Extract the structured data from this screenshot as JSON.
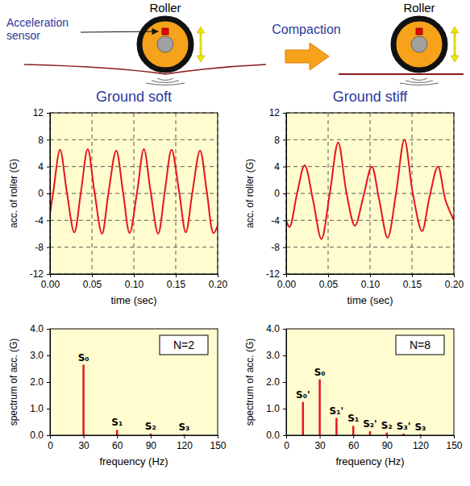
{
  "diagram": {
    "rollers": [
      {
        "label": "Roller"
      },
      {
        "label": "Roller"
      }
    ],
    "sensor_label": "Acceleration sensor",
    "arrow_label": "Compaction"
  },
  "chart_data": [
    {
      "type": "line",
      "title": "Ground soft",
      "xlabel": "time (sec)",
      "ylabel": "acc. of roller (G)",
      "x": [
        0,
        0.004,
        0.012,
        0.02,
        0.029,
        0.037,
        0.045,
        0.053,
        0.062,
        0.07,
        0.079,
        0.087,
        0.095,
        0.104,
        0.112,
        0.12,
        0.129,
        0.137,
        0.145,
        0.154,
        0.162,
        0.17,
        0.179,
        0.187,
        0.195,
        0.2
      ],
      "values": [
        -3,
        0.3,
        6.5,
        0.3,
        -5.8,
        0.3,
        6.6,
        0.3,
        -6,
        0.3,
        6.4,
        0.3,
        -5.9,
        0.3,
        6.6,
        0.3,
        -6,
        0.3,
        6.5,
        0.3,
        -5.8,
        0.3,
        6.4,
        0.3,
        -5.9,
        -4.8
      ],
      "color": "#e8141c",
      "xlim": [
        0,
        0.2
      ],
      "ylim": [
        -12,
        12
      ],
      "xticks": [
        {
          "value": 0,
          "label": "0.00"
        },
        {
          "value": 0.05,
          "label": "0.05"
        },
        {
          "value": 0.1,
          "label": "0.10"
        },
        {
          "value": 0.15,
          "label": "0.15"
        },
        {
          "value": 0.2,
          "label": "0.20"
        }
      ],
      "yticks": [
        -12,
        -8,
        -4,
        0,
        4,
        8,
        12
      ],
      "grid": true
    },
    {
      "type": "line",
      "title": "Ground stiff",
      "xlabel": "time (sec)",
      "ylabel": "acc. of roller (G)",
      "x": [
        0,
        0.004,
        0.013,
        0.022,
        0.032,
        0.042,
        0.052,
        0.062,
        0.072,
        0.082,
        0.092,
        0.102,
        0.111,
        0.121,
        0.131,
        0.141,
        0.151,
        0.162,
        0.171,
        0.181,
        0.19,
        0.2
      ],
      "values": [
        -4,
        -5,
        0,
        4.2,
        -1,
        -6.8,
        0,
        7.6,
        0,
        -4.8,
        -0.5,
        4,
        -1,
        -6.6,
        0,
        8,
        0,
        -5.6,
        -0.5,
        4,
        -1,
        -4
      ],
      "color": "#e8141c",
      "xlim": [
        0,
        0.2
      ],
      "ylim": [
        -12,
        12
      ],
      "xticks": [
        {
          "value": 0,
          "label": "0.00"
        },
        {
          "value": 0.05,
          "label": "0.05"
        },
        {
          "value": 0.1,
          "label": "0.10"
        },
        {
          "value": 0.15,
          "label": "0.15"
        },
        {
          "value": 0.2,
          "label": "0.20"
        }
      ],
      "yticks": [
        -12,
        -8,
        -4,
        0,
        4,
        8,
        12
      ],
      "grid": true
    },
    {
      "type": "stem",
      "xlabel": "frequency (Hz)",
      "ylabel": "spectrum of acc. (G)",
      "x": [
        30,
        60,
        90,
        120
      ],
      "values": [
        2.65,
        0.2,
        0.06,
        0.04
      ],
      "point_labels": [
        "S₀",
        "S₁",
        "S₂",
        "S₃"
      ],
      "annotations": [
        "N=2"
      ],
      "color": "#e8141c",
      "xlim": [
        0,
        150
      ],
      "ylim": [
        0,
        4
      ],
      "xticks": [
        0,
        30,
        60,
        90,
        120,
        150
      ],
      "yticks": [
        {
          "value": 0,
          "label": "0.0"
        },
        {
          "value": 1,
          "label": "1.0"
        },
        {
          "value": 2,
          "label": "2.0"
        },
        {
          "value": 3,
          "label": "3.0"
        },
        {
          "value": 4,
          "label": "4.0"
        }
      ],
      "grid": false
    },
    {
      "type": "stem",
      "xlabel": "frequency (Hz)",
      "ylabel": "spectrum of acc. (G)",
      "x": [
        15,
        30,
        45,
        60,
        75,
        90,
        105,
        120
      ],
      "values": [
        1.25,
        2.1,
        0.65,
        0.35,
        0.15,
        0.1,
        0.06,
        0.04
      ],
      "point_labels": [
        "S₀'",
        "S₀",
        "S₁'",
        "S₁",
        "S₂'",
        "S₂",
        "S₃'",
        "S₃"
      ],
      "annotations": [
        "N=8"
      ],
      "color": "#e8141c",
      "xlim": [
        0,
        150
      ],
      "ylim": [
        0,
        4
      ],
      "xticks": [
        0,
        30,
        60,
        90,
        120,
        150
      ],
      "yticks": [
        {
          "value": 0,
          "label": "0.0"
        },
        {
          "value": 1,
          "label": "1.0"
        },
        {
          "value": 2,
          "label": "2.0"
        },
        {
          "value": 3,
          "label": "3.0"
        },
        {
          "value": 4,
          "label": "4.0"
        }
      ],
      "grid": false
    }
  ]
}
